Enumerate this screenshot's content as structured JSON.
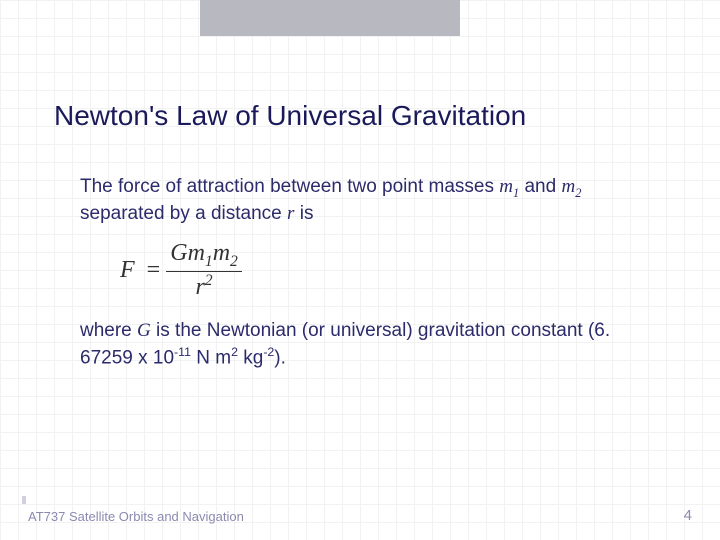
{
  "title": "Newton's Law of Universal Gravitation",
  "para1": {
    "pre": "The force of attraction between two point masses ",
    "m1": "m",
    "m1sub": "1",
    "mid": " and ",
    "m2": "m",
    "m2sub": "2",
    "post1": " separated by a distance ",
    "r": "r",
    "post2": " is"
  },
  "formula": {
    "F": "F",
    "eq": "=",
    "G": "G",
    "m": "m",
    "s1": "1",
    "s2": "2",
    "r": "r",
    "rsup": "2"
  },
  "para2": {
    "pre": "where ",
    "G": "G",
    "mid": " is the Newtonian (or universal) gravitation constant (6. 67259 x 10",
    "exp": "-11",
    "unit1": " N m",
    "u1sup": "2",
    "unit2": " kg",
    "u2sup": "-2",
    "end": ")."
  },
  "footer": {
    "course": "AT737 Satellite Orbits and Navigation",
    "page": "4"
  },
  "colors": {
    "title": "#1a1a5a",
    "body": "#2b2b6b",
    "footer": "#8a8ab0",
    "topbar": "#b8b8c0",
    "grid": "#f2f2f2"
  }
}
